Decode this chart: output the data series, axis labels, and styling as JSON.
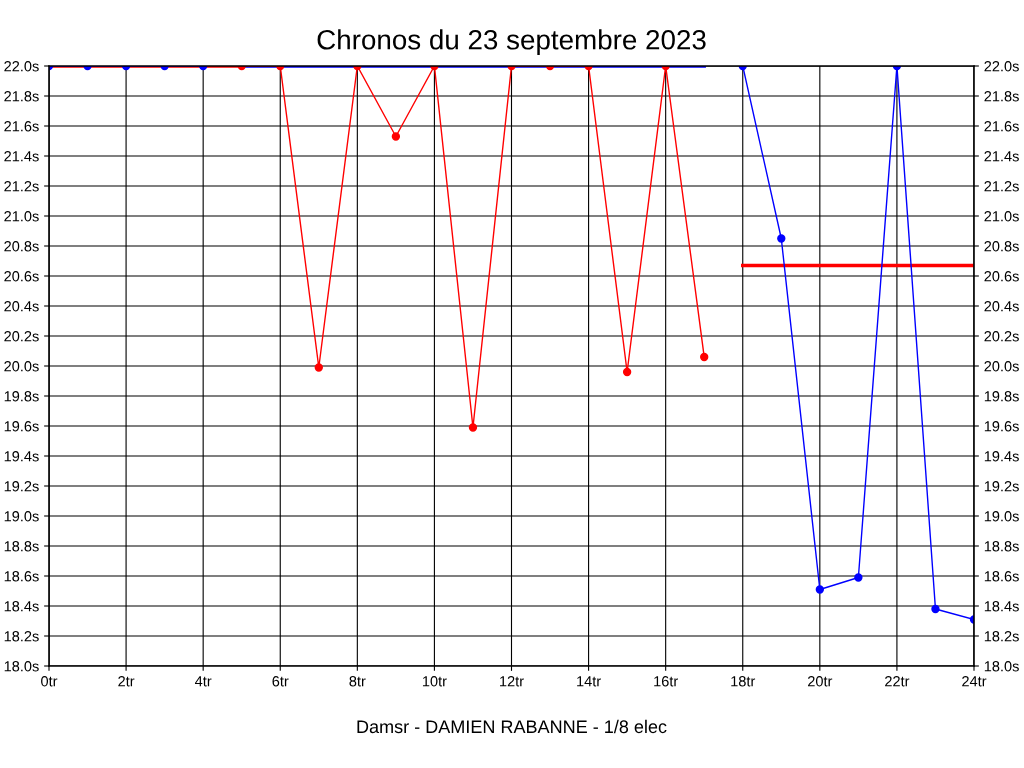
{
  "chart_data": {
    "type": "line",
    "title": "Chronos du 23 septembre 2023",
    "xlabel": "Damsr - DAMIEN RABANNE - 1/8 elec",
    "xlim": [
      0,
      24
    ],
    "xticks": [
      {
        "value": 0,
        "label": "0tr"
      },
      {
        "value": 2,
        "label": "2tr"
      },
      {
        "value": 4,
        "label": "4tr"
      },
      {
        "value": 6,
        "label": "6tr"
      },
      {
        "value": 8,
        "label": "8tr"
      },
      {
        "value": 10,
        "label": "10tr"
      },
      {
        "value": 12,
        "label": "12tr"
      },
      {
        "value": 14,
        "label": "14tr"
      },
      {
        "value": 16,
        "label": "16tr"
      },
      {
        "value": 18,
        "label": "18tr"
      },
      {
        "value": 20,
        "label": "20tr"
      },
      {
        "value": 22,
        "label": "22tr"
      },
      {
        "value": 24,
        "label": "24tr"
      }
    ],
    "ylim": [
      18.0,
      22.0
    ],
    "yticks": [
      {
        "value": 18.0,
        "label": "18.0s"
      },
      {
        "value": 18.2,
        "label": "18.2s"
      },
      {
        "value": 18.4,
        "label": "18.4s"
      },
      {
        "value": 18.6,
        "label": "18.6s"
      },
      {
        "value": 18.8,
        "label": "18.8s"
      },
      {
        "value": 19.0,
        "label": "19.0s"
      },
      {
        "value": 19.2,
        "label": "19.2s"
      },
      {
        "value": 19.4,
        "label": "19.4s"
      },
      {
        "value": 19.6,
        "label": "19.6s"
      },
      {
        "value": 19.8,
        "label": "19.8s"
      },
      {
        "value": 20.0,
        "label": "20.0s"
      },
      {
        "value": 20.2,
        "label": "20.2s"
      },
      {
        "value": 20.4,
        "label": "20.4s"
      },
      {
        "value": 20.6,
        "label": "20.6s"
      },
      {
        "value": 20.8,
        "label": "20.8s"
      },
      {
        "value": 21.0,
        "label": "21.0s"
      },
      {
        "value": 21.2,
        "label": "21.2s"
      },
      {
        "value": 21.4,
        "label": "21.4s"
      },
      {
        "value": 21.6,
        "label": "21.6s"
      },
      {
        "value": 21.8,
        "label": "21.8s"
      },
      {
        "value": 22.0,
        "label": "22.0s"
      }
    ],
    "y2lim": [
      18.0,
      22.0
    ],
    "y2ticks": [
      {
        "value": 18.0,
        "label": "18.0s"
      },
      {
        "value": 18.2,
        "label": "18.2s"
      },
      {
        "value": 18.4,
        "label": "18.4s"
      },
      {
        "value": 18.6,
        "label": "18.6s"
      },
      {
        "value": 18.8,
        "label": "18.8s"
      },
      {
        "value": 19.0,
        "label": "19.0s"
      },
      {
        "value": 19.2,
        "label": "19.2s"
      },
      {
        "value": 19.4,
        "label": "19.4s"
      },
      {
        "value": 19.6,
        "label": "19.6s"
      },
      {
        "value": 19.8,
        "label": "19.8s"
      },
      {
        "value": 20.0,
        "label": "20.0s"
      },
      {
        "value": 20.2,
        "label": "20.2s"
      },
      {
        "value": 20.4,
        "label": "20.4s"
      },
      {
        "value": 20.6,
        "label": "20.6s"
      },
      {
        "value": 20.8,
        "label": "20.8s"
      },
      {
        "value": 21.0,
        "label": "21.0s"
      },
      {
        "value": 21.2,
        "label": "21.2s"
      },
      {
        "value": 21.4,
        "label": "21.4s"
      },
      {
        "value": 21.6,
        "label": "21.6s"
      },
      {
        "value": 21.8,
        "label": "21.8s"
      },
      {
        "value": 22.0,
        "label": "22.0s"
      }
    ],
    "grid": true,
    "marker": "circle",
    "line_style": "solid",
    "series": [
      {
        "color": "#ff0000",
        "marker": "none",
        "x": [
          0,
          5
        ],
        "values": [
          22.0,
          22.0
        ]
      },
      {
        "color": "#0000ff",
        "marker": "none",
        "x": [
          5,
          17
        ],
        "values": [
          22.0,
          22.0
        ]
      },
      {
        "color": "#ff0000",
        "marker": "none",
        "x": [
          18,
          24
        ],
        "values": [
          20.67,
          20.67
        ]
      },
      {
        "color": "#0000ff",
        "x": [
          0,
          1,
          2,
          3,
          4
        ],
        "values": [
          22.0,
          22.0,
          22.0,
          22.0,
          22.0
        ]
      },
      {
        "color": "#ff0000",
        "x": [
          5,
          6,
          7,
          8,
          9,
          10,
          11,
          12,
          13,
          14,
          15,
          16,
          17
        ],
        "values": [
          22.0,
          22.0,
          19.99,
          22.0,
          21.53,
          22.0,
          19.59,
          22.0,
          22.0,
          22.0,
          19.96,
          22.0,
          20.06
        ]
      },
      {
        "color": "#0000ff",
        "x": [
          18,
          19,
          20,
          21,
          22,
          23,
          24
        ],
        "values": [
          22.0,
          20.85,
          18.51,
          18.59,
          22.0,
          18.38,
          18.31
        ]
      }
    ]
  }
}
